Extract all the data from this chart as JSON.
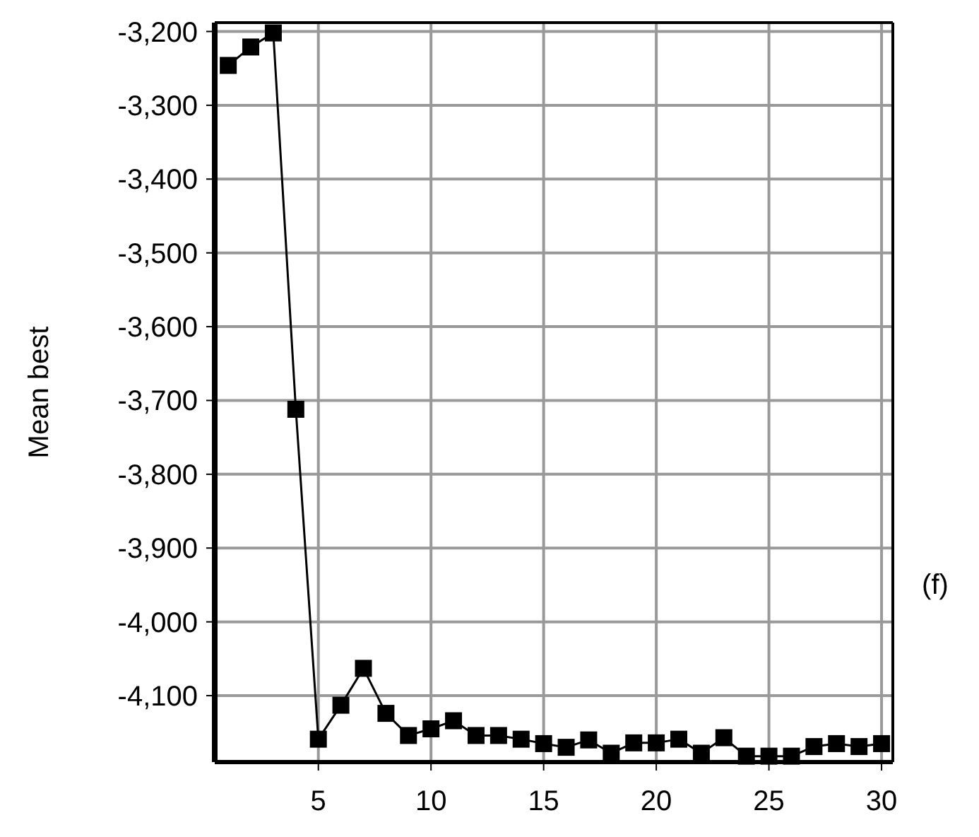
{
  "chart_data": {
    "type": "line",
    "ylabel": "Mean best",
    "annotations": [
      "(f)"
    ],
    "x": [
      1,
      2,
      3,
      4,
      5,
      6,
      7,
      8,
      9,
      10,
      11,
      12,
      13,
      14,
      15,
      16,
      17,
      18,
      19,
      20,
      21,
      22,
      23,
      24,
      25,
      26,
      27,
      28,
      29,
      30
    ],
    "series": [
      {
        "color": "#000000",
        "values": [
          -3246,
          -3221,
          -3202,
          -3712,
          -4159,
          -4113,
          -4063,
          -4124,
          -4154,
          -4145,
          -4134,
          -4154,
          -4154,
          -4159,
          -4165,
          -4170,
          -4160,
          -4178,
          -4164,
          -4164,
          -4159,
          -4178,
          -4157,
          -4182,
          -4182,
          -4182,
          -4169,
          -4165,
          -4169,
          -4165
        ]
      }
    ],
    "xlim": [
      0.4,
      30.5
    ],
    "xticks": [
      5,
      10,
      15,
      20,
      25,
      30
    ],
    "ylim": [
      -4190,
      -3188
    ],
    "yticks": [
      {
        "value": -3200,
        "label": "-3,200"
      },
      {
        "value": -3300,
        "label": "-3,300"
      },
      {
        "value": -3400,
        "label": "-3,400"
      },
      {
        "value": -3500,
        "label": "-3,500"
      },
      {
        "value": -3600,
        "label": "-3,600"
      },
      {
        "value": -3700,
        "label": "-3,700"
      },
      {
        "value": -3800,
        "label": "-3,800"
      },
      {
        "value": -3900,
        "label": "-3,900"
      },
      {
        "value": -4000,
        "label": "-4,000"
      },
      {
        "value": -4100,
        "label": "-4,100"
      }
    ],
    "grid": true,
    "marker": "square",
    "line_style": "solid"
  }
}
